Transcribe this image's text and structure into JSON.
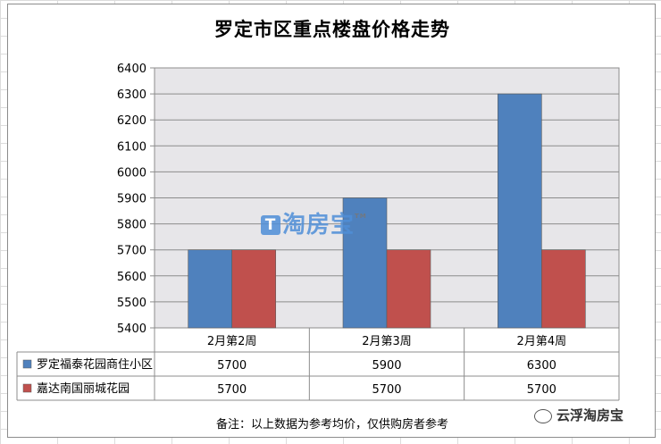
{
  "chart_data": {
    "type": "bar",
    "title": "罗定市区重点楼盘价格走势",
    "categories": [
      "2月第2周",
      "2月第3周",
      "2月第4周"
    ],
    "series": [
      {
        "name": "罗定福泰花园商住小区",
        "values": [
          5700,
          5900,
          6300
        ],
        "color": "#4f81bd"
      },
      {
        "name": "嘉达南国丽城花园",
        "values": [
          5700,
          5700,
          5700
        ],
        "color": "#c0504d"
      }
    ],
    "ylim": [
      5400,
      6400
    ],
    "yticks": [
      5400,
      5500,
      5600,
      5700,
      5800,
      5900,
      6000,
      6100,
      6200,
      6300,
      6400
    ],
    "grid": true,
    "legend": "data-table",
    "note": "备注：以上数据为参考均价，仅供购房者参考"
  },
  "brand_watermark": "淘房宝",
  "wechat_watermark": "云浮淘房宝"
}
